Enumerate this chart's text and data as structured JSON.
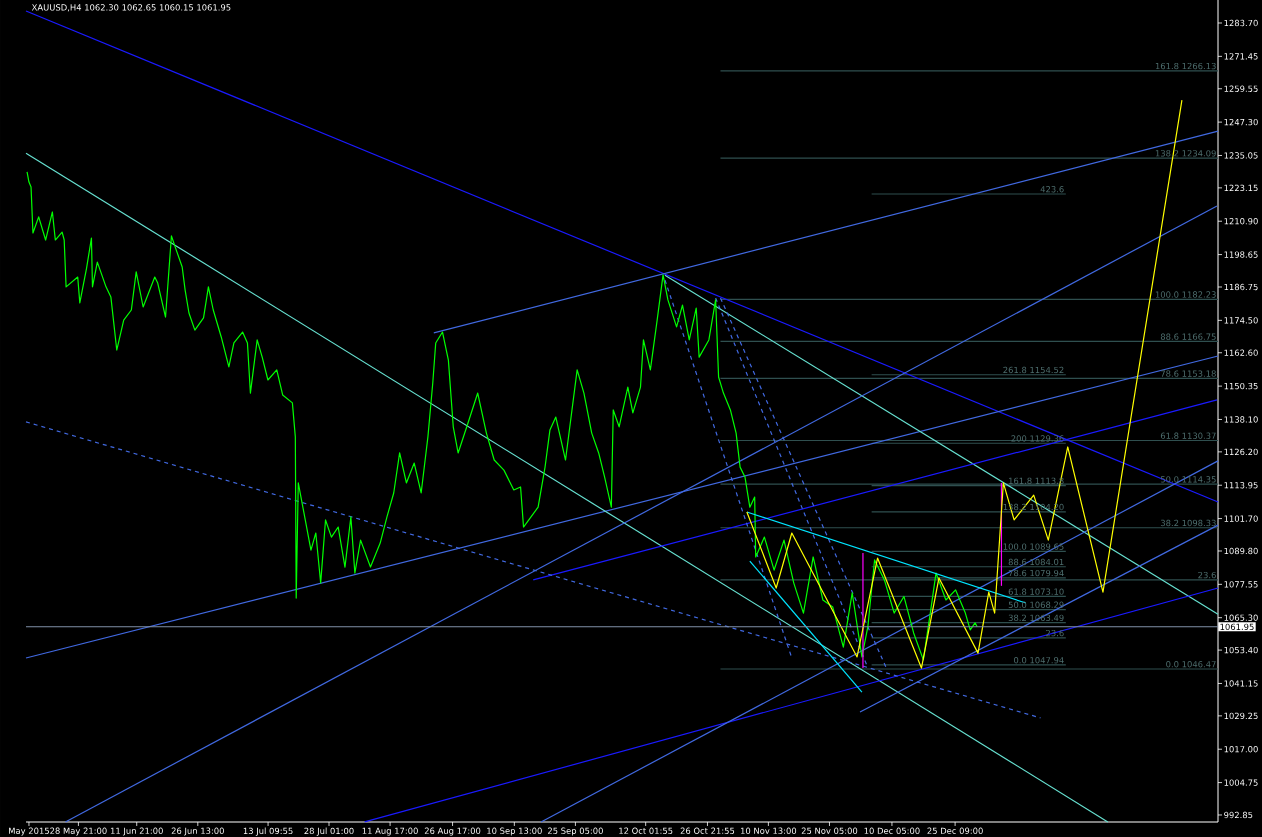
{
  "chart_data": {
    "type": "line",
    "title": "XAUUSD,H4  1062.30 1062.65 1060.15 1061.95",
    "xlim": [
      "2015-05-16T07:00",
      "2016-02-26T12:00"
    ],
    "ylim": [
      990.28,
      1292.15
    ],
    "xticks": [
      {
        "value": "2015-05-17T00:00",
        "label": "May 2015"
      },
      {
        "value": "2015-05-28T21:00",
        "label": "28 May 21:00"
      },
      {
        "value": "2015-06-11T21:00",
        "label": "11 Jun 21:00"
      },
      {
        "value": "2015-06-26T13:00",
        "label": "26 Jun 13:00"
      },
      {
        "value": "2015-07-13T09:55",
        "label": "13 Jul 09:55"
      },
      {
        "value": "2015-07-28T01:00",
        "label": "28 Jul 01:00"
      },
      {
        "value": "2015-08-11T17:00",
        "label": "11 Aug 17:00"
      },
      {
        "value": "2015-08-26T17:00",
        "label": "26 Aug 17:00"
      },
      {
        "value": "2015-09-10T13:00",
        "label": "10 Sep 13:00"
      },
      {
        "value": "2015-09-25T05:00",
        "label": "25 Sep 05:00"
      },
      {
        "value": "2015-10-12T01:55",
        "label": "12 Oct 01:55"
      },
      {
        "value": "2015-10-26T21:55",
        "label": "26 Oct 21:55"
      },
      {
        "value": "2015-11-10T13:00",
        "label": "10 Nov 13:00"
      },
      {
        "value": "2015-11-25T05:00",
        "label": "25 Nov 05:00"
      },
      {
        "value": "2015-12-10T05:00",
        "label": "10 Dec 05:00"
      },
      {
        "value": "2015-12-25T09:00",
        "label": "25 Dec 09:00"
      }
    ],
    "yticks": [
      {
        "value": 992.85,
        "label": "992.85"
      },
      {
        "value": 1004.75,
        "label": "1004.75"
      },
      {
        "value": 1017.0,
        "label": "1017.00"
      },
      {
        "value": 1029.25,
        "label": "1029.25"
      },
      {
        "value": 1041.15,
        "label": "1041.15"
      },
      {
        "value": 1053.4,
        "label": "1053.40"
      },
      {
        "value": 1065.3,
        "label": "1065.30"
      },
      {
        "value": 1077.55,
        "label": "1077.55"
      },
      {
        "value": 1089.8,
        "label": "1089.80"
      },
      {
        "value": 1101.7,
        "label": "1101.70"
      },
      {
        "value": 1113.95,
        "label": "1113.95"
      },
      {
        "value": 1126.2,
        "label": "1126.20"
      },
      {
        "value": 1138.1,
        "label": "1138.10"
      },
      {
        "value": 1150.35,
        "label": "1150.35"
      },
      {
        "value": 1162.6,
        "label": "1162.60"
      },
      {
        "value": 1174.5,
        "label": "1174.50"
      },
      {
        "value": 1186.75,
        "label": "1186.75"
      },
      {
        "value": 1198.65,
        "label": "1198.65"
      },
      {
        "value": 1210.9,
        "label": "1210.90"
      },
      {
        "value": 1223.15,
        "label": "1223.15"
      },
      {
        "value": 1235.05,
        "label": "1235.05"
      },
      {
        "value": 1247.3,
        "label": "1247.30"
      },
      {
        "value": 1259.55,
        "label": "1259.55"
      },
      {
        "value": 1271.45,
        "label": "1271.45"
      },
      {
        "value": 1283.7,
        "label": "1283.70"
      }
    ],
    "series": [
      {
        "color": "#2f4f4f",
        "x": [
          "2015-10-30T01:00",
          "2016-02-26T12:00"
        ],
        "values": [
          1266.13,
          1266.13
        ]
      },
      {
        "color": "#2f4f4f",
        "x": [
          "2015-10-30T01:00",
          "2016-02-26T12:00"
        ],
        "values": [
          1234.09,
          1234.09
        ]
      },
      {
        "color": "#2f4f4f",
        "x": [
          "2015-10-30T01:00",
          "2016-02-26T12:00"
        ],
        "values": [
          1182.23,
          1182.23
        ]
      },
      {
        "color": "#2f4f4f",
        "x": [
          "2015-10-30T01:00",
          "2016-02-26T12:00"
        ],
        "values": [
          1166.75,
          1166.75
        ]
      },
      {
        "color": "#2f4f4f",
        "x": [
          "2015-10-30T01:00",
          "2016-02-26T12:00"
        ],
        "values": [
          1153.18,
          1153.18
        ]
      },
      {
        "color": "#2f4f4f",
        "x": [
          "2015-10-30T01:00",
          "2016-02-26T12:00"
        ],
        "values": [
          1130.37,
          1130.37
        ]
      },
      {
        "color": "#2f4f4f",
        "x": [
          "2015-10-30T01:00",
          "2016-02-26T12:00"
        ],
        "values": [
          1114.35,
          1114.35
        ]
      },
      {
        "color": "#2f4f4f",
        "x": [
          "2015-10-30T01:00",
          "2016-02-26T12:00"
        ],
        "values": [
          1098.33,
          1098.33
        ]
      },
      {
        "color": "#2f4f4f",
        "x": [
          "2015-10-30T01:00",
          "2016-02-26T12:00"
        ],
        "values": [
          1079.2,
          1079.2
        ]
      },
      {
        "color": "#2f4f4f",
        "x": [
          "2015-10-30T01:00",
          "2016-02-26T12:00"
        ],
        "values": [
          1046.47,
          1046.47
        ]
      },
      {
        "color": "#2f4f4f",
        "x": [
          "2015-12-05T08:00",
          "2016-01-20T23:00"
        ],
        "values": [
          1220.9,
          1220.9
        ]
      },
      {
        "color": "#2f4f4f",
        "x": [
          "2015-12-05T08:00",
          "2016-01-20T23:00"
        ],
        "values": [
          1154.52,
          1154.52
        ]
      },
      {
        "color": "#2f4f4f",
        "x": [
          "2015-12-05T08:00",
          "2016-01-20T23:00"
        ],
        "values": [
          1129.36,
          1129.36
        ]
      },
      {
        "color": "#2f4f4f",
        "x": [
          "2015-12-05T08:00",
          "2016-01-20T23:00"
        ],
        "values": [
          1113.8,
          1113.8
        ]
      },
      {
        "color": "#2f4f4f",
        "x": [
          "2015-12-05T08:00",
          "2016-01-20T23:00"
        ],
        "values": [
          1104.2,
          1104.2
        ]
      },
      {
        "color": "#2f4f4f",
        "x": [
          "2015-12-05T08:00",
          "2016-01-20T23:00"
        ],
        "values": [
          1089.65,
          1089.65
        ]
      },
      {
        "color": "#2f4f4f",
        "x": [
          "2015-12-05T08:00",
          "2016-01-20T23:00"
        ],
        "values": [
          1084.01,
          1084.01
        ]
      },
      {
        "color": "#2f4f4f",
        "x": [
          "2015-12-05T08:00",
          "2016-01-20T23:00"
        ],
        "values": [
          1079.94,
          1079.94
        ]
      },
      {
        "color": "#2f4f4f",
        "x": [
          "2015-12-05T08:00",
          "2016-01-20T23:00"
        ],
        "values": [
          1073.1,
          1073.1
        ]
      },
      {
        "color": "#2f4f4f",
        "x": [
          "2015-12-05T08:00",
          "2016-01-20T23:00"
        ],
        "values": [
          1068.29,
          1068.29
        ]
      },
      {
        "color": "#2f4f4f",
        "x": [
          "2015-12-05T08:00",
          "2016-01-20T23:00"
        ],
        "values": [
          1063.49,
          1063.49
        ]
      },
      {
        "color": "#2f4f4f",
        "x": [
          "2015-12-05T08:00",
          "2016-01-20T23:00"
        ],
        "values": [
          1057.9,
          1057.9
        ]
      },
      {
        "color": "#2f4f4f",
        "x": [
          "2015-12-05T08:00",
          "2016-01-20T23:00"
        ],
        "values": [
          1047.94,
          1047.94
        ]
      },
      {
        "color": "#1a1aff",
        "x": [
          "2015-05-16T07:00",
          "2016-02-26T12:00"
        ],
        "values": [
          1288.1,
          1107.8
        ]
      },
      {
        "color": "#4169e1",
        "x": [
          "2015-08-22T05:00",
          "2016-02-26T12:00"
        ],
        "values": [
          1169.9,
          1244.0
        ]
      },
      {
        "color": "#4169e1",
        "x": [
          "2015-05-16T07:00",
          "2016-02-26T12:00"
        ],
        "values": [
          1050.5,
          1161.4
        ]
      },
      {
        "color": "#66e0d0",
        "x": [
          "2015-05-16T07:00",
          "2016-01-31T01:00"
        ],
        "values": [
          1235.9,
          990.3
        ]
      },
      {
        "color": "#66e0d0",
        "x": [
          "2015-10-16T17:00",
          "2016-02-26T12:00"
        ],
        "values": [
          1191.1,
          1066.6
        ]
      },
      {
        "color": "#4169e1",
        "x": [
          "2015-05-25T18:00",
          "2016-02-26T06:00"
        ],
        "values": [
          990.3,
          1216.5
        ]
      },
      {
        "color": "#1a1aff",
        "x": [
          "2015-08-05T14:00",
          "2016-02-26T12:00"
        ],
        "values": [
          990.3,
          1076.2
        ]
      },
      {
        "color": "#4169e1",
        "x": [
          "2015-09-16T23:00",
          "2016-02-26T12:00"
        ],
        "values": [
          990.3,
          1122.9
        ]
      },
      {
        "color": "#4169e1",
        "x": [
          "2015-12-02T13:00",
          "2016-02-26T12:00"
        ],
        "values": [
          1030.7,
          1099.3
        ]
      },
      {
        "color": "#1a1aff",
        "x": [
          "2015-09-15T02:00",
          "2016-02-26T06:00"
        ],
        "values": [
          1079.2,
          1145.3
        ]
      },
      {
        "color": "#4169e1",
        "line_style": "dashed",
        "x": [
          "2015-05-16T07:00",
          "2016-01-14T21:00"
        ],
        "values": [
          1137.2,
          1028.5
        ]
      },
      {
        "color": "#4169e1",
        "line_style": "dashed",
        "x": [
          "2015-10-16T17:00",
          "2015-11-16T04:00"
        ],
        "values": [
          1189.3,
          1050.5
        ]
      },
      {
        "color": "#4169e1",
        "line_style": "dashed",
        "x": [
          "2015-10-28T21:00",
          "2015-12-04T04:00"
        ],
        "values": [
          1182.7,
          1047.9
        ]
      },
      {
        "color": "#4169e1",
        "line_style": "dashed",
        "x": [
          "2015-10-30T01:00",
          "2015-12-08T21:00"
        ],
        "values": [
          1182.7,
          1046.8
        ]
      },
      {
        "color": "#00ff00",
        "x": [
          "2015-05-16T13:00",
          "2015-05-17T00:00",
          "2015-05-17T12:00",
          "2015-05-17T23:00",
          "2015-05-19T08:00",
          "2015-05-21T00:00",
          "2015-05-22T15:00",
          "2015-05-23T08:00",
          "2015-05-24T23:00",
          "2015-05-25T11:00",
          "2015-05-25T22:00",
          "2015-05-28T17:00",
          "2015-05-29T05:00",
          "2015-05-30T20:00",
          "2015-06-01T00:00",
          "2015-06-01T06:00",
          "2015-06-02T10:00",
          "2015-06-04T12:00",
          "2015-06-05T16:00",
          "2015-06-07T02:00",
          "2015-06-08T18:00",
          "2015-06-10T14:00",
          "2015-06-11T18:00",
          "2015-06-13T10:00",
          "2015-06-16T05:00",
          "2015-06-16T22:00",
          "2015-06-18T19:00",
          "2015-06-20T05:00",
          "2015-06-21T09:00",
          "2015-06-22T19:00",
          "2015-06-23T12:00",
          "2015-06-24T10:00",
          "2015-06-25T20:00",
          "2015-06-27T22:00",
          "2015-06-29T02:00",
          "2015-06-30T06:00",
          "2015-07-02T04:00",
          "2015-07-04T00:00",
          "2015-07-05T05:00",
          "2015-07-07T07:00",
          "2015-07-08T11:00",
          "2015-07-09T04:00",
          "2015-07-10T19:00",
          "2015-07-12T00:00",
          "2015-07-13T09:00",
          "2015-07-15T12:00",
          "2015-07-16T22:00",
          "2015-07-19T06:00",
          "2015-07-19T23:00",
          "2015-07-20T04:00",
          "2015-07-20T16:00",
          "2015-07-21T14:00",
          "2015-07-23T17:00",
          "2015-07-24T21:00",
          "2015-07-26T01:00",
          "2015-07-27T05:00",
          "2015-07-28T15:00",
          "2015-07-30T06:00",
          "2015-07-31T21:00",
          "2015-08-02T07:00",
          "2015-08-03T06:00",
          "2015-08-04T15:00",
          "2015-08-07T00:00",
          "2015-08-09T08:00",
          "2015-08-10T23:00",
          "2015-08-12T14:00",
          "2015-08-14T00:00",
          "2015-08-15T15:00",
          "2015-08-17T12:00",
          "2015-08-19T04:00",
          "2015-08-20T19:00",
          "2015-08-21T23:00",
          "2015-08-22T16:00",
          "2015-08-24T07:00",
          "2015-08-25T17:00",
          "2015-08-26T21:00",
          "2015-08-28T01:00",
          "2015-08-30T10:00",
          "2015-09-01T18:00",
          "2015-09-03T20:00",
          "2015-09-05T17:00",
          "2015-09-08T01:00",
          "2015-09-10T10:00",
          "2015-09-12T01:00",
          "2015-09-12T18:00",
          "2015-09-16T06:00",
          "2015-09-17T22:00",
          "2015-09-19T02:00",
          "2015-09-20T12:00",
          "2015-09-22T20:00",
          "2015-09-25T15:00",
          "2015-09-27T06:00",
          "2015-09-29T03:00",
          "2015-09-30T19:00",
          "2015-10-02T05:00",
          "2015-10-03T20:00",
          "2015-10-04T07:00",
          "2015-10-05T17:00",
          "2015-10-07T19:00",
          "2015-10-09T00:00",
          "2015-10-10T20:00",
          "2015-10-11T13:00",
          "2015-10-13T05:00",
          "2015-10-14T20:00",
          "2015-10-16T06:00",
          "2015-10-17T10:00",
          "2015-10-19T12:00",
          "2015-10-20T22:00",
          "2015-10-22T13:00",
          "2015-10-24T05:00",
          "2015-10-24T22:00",
          "2015-10-27T06:00",
          "2015-10-28T21:00",
          "2015-10-29T14:00",
          "2015-10-30T18:00",
          "2015-11-01T10:00",
          "2015-11-02T19:00",
          "2015-11-03T18:00",
          "2015-11-04T22:00",
          "2015-11-06T02:00",
          "2015-11-07T06:00",
          "2015-11-07T12:00",
          "2015-11-09T14:00",
          "2015-11-11T22:00",
          "2015-11-14T07:00",
          "2015-11-16T15:00",
          "2015-11-18T23:00",
          "2015-11-21T07:00",
          "2015-11-23T15:00",
          "2015-11-26T00:00",
          "2015-11-28T13:00",
          "2015-11-30T16:00",
          "2015-12-03T00:00",
          "2015-12-04T10:00",
          "2015-12-06T01:00",
          "2015-12-08T10:00",
          "2015-12-10T18:00",
          "2015-12-13T02:00",
          "2015-12-15T10:00",
          "2015-12-17T18:00",
          "2015-12-19T10:00",
          "2015-12-20T19:00",
          "2015-12-23T04:00",
          "2015-12-25T12:00",
          "2015-12-27T20:00",
          "2015-12-29T00:00",
          "2015-12-30T04:00",
          "2015-12-30T16:00"
        ],
        "values": [
          1229.0,
          1225.3,
          1223.5,
          1206.6,
          1212.5,
          1204.0,
          1214.3,
          1204.0,
          1206.9,
          1204.0,
          1186.8,
          1190.4,
          1180.9,
          1193.7,
          1204.7,
          1186.8,
          1195.9,
          1186.8,
          1183.1,
          1163.6,
          1174.6,
          1178.3,
          1192.3,
          1179.4,
          1190.4,
          1188.2,
          1175.7,
          1205.5,
          1200.3,
          1194.1,
          1185.6,
          1177.2,
          1170.9,
          1175.4,
          1186.8,
          1178.3,
          1168.4,
          1157.4,
          1166.2,
          1170.2,
          1166.2,
          1147.8,
          1167.3,
          1161.0,
          1152.6,
          1156.3,
          1147.1,
          1144.2,
          1131.7,
          1072.5,
          1114.8,
          1107.4,
          1090.1,
          1096.4,
          1078.1,
          1101.2,
          1094.9,
          1098.6,
          1083.9,
          1102.3,
          1081.7,
          1093.8,
          1083.9,
          1092.7,
          1102.3,
          1111.1,
          1125.8,
          1114.8,
          1122.1,
          1111.1,
          1131.7,
          1151.5,
          1166.2,
          1170.2,
          1159.9,
          1135.4,
          1125.8,
          1136.8,
          1147.8,
          1133.1,
          1123.2,
          1119.5,
          1112.2,
          1113.3,
          1098.6,
          1105.9,
          1120.6,
          1134.2,
          1139.0,
          1123.2,
          1156.3,
          1147.8,
          1133.1,
          1125.8,
          1117.0,
          1105.9,
          1141.6,
          1135.4,
          1150.0,
          1140.5,
          1150.0,
          1167.3,
          1156.3,
          1174.6,
          1191.2,
          1182.0,
          1172.1,
          1180.1,
          1167.3,
          1179.0,
          1161.0,
          1167.3,
          1182.0,
          1153.7,
          1147.8,
          1141.6,
          1133.1,
          1120.6,
          1117.0,
          1105.9,
          1109.6,
          1087.6,
          1094.9,
          1082.8,
          1093.8,
          1078.1,
          1067.0,
          1087.6,
          1071.8,
          1069.2,
          1054.5,
          1074.4,
          1050.9,
          1061.9,
          1086.5,
          1079.1,
          1067.0,
          1073.1,
          1059.7,
          1049.8,
          1067.0,
          1081.7,
          1071.8,
          1075.5,
          1067.0,
          1060.8,
          1063.4,
          1061.95
        ]
      },
      {
        "color": "#ff00ff",
        "x": [
          "2015-12-03T06:00",
          "2015-12-03T06:00"
        ],
        "values": [
          1089.1,
          1046.8
        ]
      },
      {
        "color": "#ff00ff",
        "x": [
          "2016-01-05T12:00",
          "2016-01-05T12:00"
        ],
        "values": [
          1114.8,
          1077.0
        ]
      },
      {
        "color": "#00e5ff",
        "x": [
          "2015-11-05T09:00",
          "2016-01-11T09:00"
        ],
        "values": [
          1104.1,
          1070.7
        ]
      },
      {
        "color": "#00e5ff",
        "x": [
          "2015-11-06T02:00",
          "2015-12-03T00:00"
        ],
        "values": [
          1086.1,
          1038.0
        ]
      },
      {
        "color": "#ffff00",
        "x": [
          "2015-11-05T09:00",
          "2015-11-12T10:00",
          "2015-11-16T04:00",
          "2015-12-01T20:00",
          "2015-12-06T18:00",
          "2015-12-17T07:00",
          "2015-12-21T12:00",
          "2015-12-30T21:00",
          "2016-01-02T11:00",
          "2016-01-03T21:00",
          "2016-01-05T23:00",
          "2016-01-08T13:00",
          "2016-01-13T06:00",
          "2016-01-16T18:00",
          "2016-01-21T10:00",
          "2016-01-29T21:00",
          "2016-02-17T20:00"
        ],
        "values": [
          1104.1,
          1076.2,
          1096.4,
          1050.9,
          1087.2,
          1046.8,
          1079.9,
          1052.3,
          1074.7,
          1067.0,
          1114.8,
          1101.2,
          1110.3,
          1093.8,
          1128.0,
          1074.7,
          1255.4
        ]
      }
    ],
    "ref_lines": [
      {
        "axis": "y",
        "value": 1061.95,
        "label": "1061.95",
        "color": "#8090a8"
      }
    ],
    "annotations": [
      {
        "text": "161.8 1266.13",
        "x": "2016-02-26T12:00",
        "y": 1266.13
      },
      {
        "text": "138.2 1234.09",
        "x": "2016-02-26T12:00",
        "y": 1234.09
      },
      {
        "text": "100.0 1182.23",
        "x": "2016-02-26T12:00",
        "y": 1182.23
      },
      {
        "text": "88.6 1166.75",
        "x": "2016-02-26T12:00",
        "y": 1166.75
      },
      {
        "text": "78.6 1153.18",
        "x": "2016-02-26T12:00",
        "y": 1153.18
      },
      {
        "text": "61.8 1130.37",
        "x": "2016-02-26T12:00",
        "y": 1130.37
      },
      {
        "text": "50.0 1114.35",
        "x": "2016-02-26T12:00",
        "y": 1114.35
      },
      {
        "text": "38.2 1098.33",
        "x": "2016-02-26T12:00",
        "y": 1098.33
      },
      {
        "text": "23.6",
        "x": "2016-02-26T12:00",
        "y": 1079.2
      },
      {
        "text": "0.0 1046.47",
        "x": "2016-02-26T12:00",
        "y": 1046.47
      },
      {
        "text": "423.6",
        "x": "2016-01-20T23:00",
        "y": 1220.9
      },
      {
        "text": "261.8 1154.52",
        "x": "2016-01-20T23:00",
        "y": 1154.52
      },
      {
        "text": "200 1129.36",
        "x": "2016-01-20T23:00",
        "y": 1129.36
      },
      {
        "text": "161.8 1113.8",
        "x": "2016-01-20T23:00",
        "y": 1113.8
      },
      {
        "text": "138.2 1104.20",
        "x": "2016-01-20T23:00",
        "y": 1104.2
      },
      {
        "text": "100.0 1089.65",
        "x": "2016-01-20T23:00",
        "y": 1089.65
      },
      {
        "text": "88.6 1084.01",
        "x": "2016-01-20T23:00",
        "y": 1084.01
      },
      {
        "text": "78.6 1079.94",
        "x": "2016-01-20T23:00",
        "y": 1079.94
      },
      {
        "text": "61.8 1073.10",
        "x": "2016-01-20T23:00",
        "y": 1073.1
      },
      {
        "text": "50.0 1068.29",
        "x": "2016-01-20T23:00",
        "y": 1068.29
      },
      {
        "text": "38.2 1063.49",
        "x": "2016-01-20T23:00",
        "y": 1063.49
      },
      {
        "text": "23.6",
        "x": "2016-01-20T23:00",
        "y": 1057.9
      },
      {
        "text": "0.0 1047.94",
        "x": "2016-01-20T23:00",
        "y": 1047.94
      }
    ]
  }
}
